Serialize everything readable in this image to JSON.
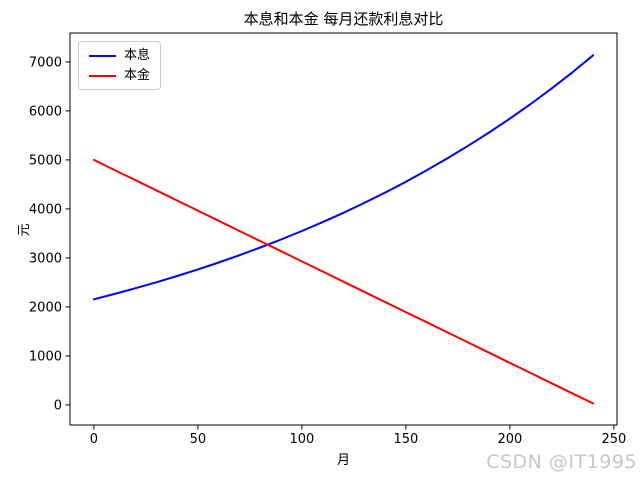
{
  "watermark": "CSDN @IT1995",
  "colors": {
    "series_blue": "#0000ff",
    "series_red": "#ff0000",
    "axis": "#000000",
    "legend_border": "#cccccc",
    "watermark": "#c7c7c7",
    "background": "#ffffff"
  },
  "chart_data": {
    "type": "line",
    "title": "本息和本金  每月还款利息对比",
    "xlabel": "月",
    "ylabel": "元",
    "xlim": [
      -11.5,
      251.5
    ],
    "ylim": [
      -410,
      7590
    ],
    "xticks": [
      0,
      50,
      100,
      150,
      200,
      250
    ],
    "yticks": [
      0,
      1000,
      2000,
      3000,
      4000,
      5000,
      6000,
      7000
    ],
    "grid": false,
    "legend_position": "upper-left",
    "x": [
      0,
      10,
      20,
      30,
      40,
      50,
      60,
      70,
      80,
      90,
      100,
      110,
      120,
      130,
      140,
      150,
      160,
      170,
      180,
      190,
      200,
      210,
      220,
      230,
      240
    ],
    "series": [
      {
        "key": "principal-and-interest",
        "name": "本息",
        "color": "#0000ff",
        "values": [
          2155,
          2265,
          2381,
          2503,
          2631,
          2765,
          2907,
          3055,
          3212,
          3376,
          3549,
          3730,
          3921,
          4122,
          4332,
          4554,
          4787,
          5032,
          5289,
          5559,
          5843,
          6142,
          6456,
          6786,
          7134
        ]
      },
      {
        "key": "principal",
        "name": "本金",
        "color": "#ff0000",
        "values": [
          5000,
          4793,
          4586,
          4379,
          4172,
          3965,
          3758,
          3550,
          3343,
          3136,
          2929,
          2722,
          2515,
          2308,
          2101,
          1894,
          1687,
          1480,
          1273,
          1065,
          858,
          651,
          444,
          237,
          30
        ]
      }
    ]
  }
}
